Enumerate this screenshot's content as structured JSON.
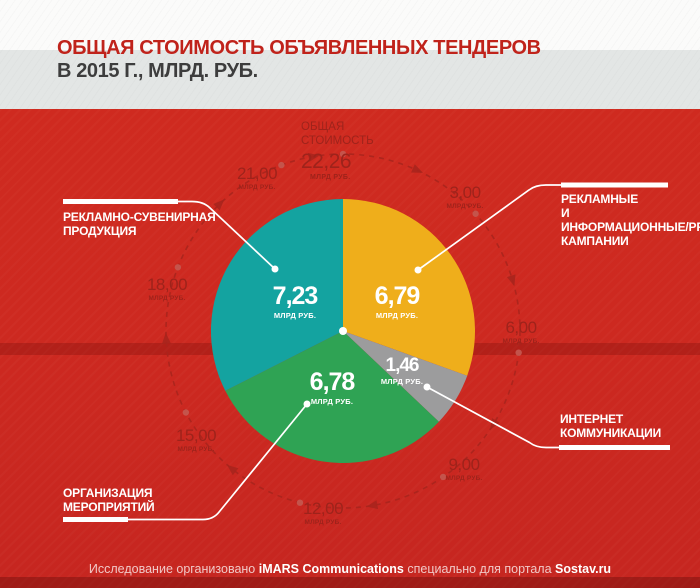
{
  "header": {
    "title_line1": "ОБЩАЯ СТОИМОСТЬ ОБЪЯВЛЕННЫХ ТЕНДЕРОВ",
    "title_line2": "В 2015 Г., МЛРД. РУБ."
  },
  "chart_data": {
    "type": "pie",
    "title": "Общая стоимость объявленных тендеров в 2015 г., млрд. руб.",
    "direction": "clockwise",
    "start_angle_deg": 0,
    "total": {
      "label_line1": "ОБЩАЯ",
      "label_line2": "СТОИМОСТЬ",
      "value": 22.26,
      "value_text": "22,26",
      "unit": "МЛРД РУБ."
    },
    "slices": [
      {
        "name": "Рекламные и информационные/PR кампании",
        "label_lines": [
          "РЕКЛАМНЫЕ",
          "И ИНФОРМАЦИОННЫЕ/PR",
          "КАМПАНИИ"
        ],
        "value": 6.79,
        "value_text": "6,79",
        "unit": "МЛРД РУБ.",
        "color": "#efae1b"
      },
      {
        "name": "Интернет коммуникации",
        "label_lines": [
          "ИНТЕРНЕТ",
          "КОММУНИКАЦИИ"
        ],
        "value": 1.46,
        "value_text": "1,46",
        "unit": "МЛРД РУБ.",
        "color": "#9c9c9d"
      },
      {
        "name": "Организация мероприятий",
        "label_lines": [
          "ОРГАНИЗАЦИЯ",
          "МЕРОПРИЯТИЙ"
        ],
        "value": 6.78,
        "value_text": "6,78",
        "unit": "МЛРД РУБ.",
        "color": "#2fa354"
      },
      {
        "name": "Рекламно-сувенирная продукция",
        "label_lines": [
          "РЕКЛАМНО-СУВЕНИРНАЯ",
          "ПРОДУКЦИЯ"
        ],
        "value": 7.23,
        "value_text": "7,23",
        "unit": "МЛРД РУБ.",
        "color": "#14a3a0"
      }
    ],
    "clock_ticks": [
      {
        "value": 3,
        "text": "3,00",
        "unit": "МЛРД РУБ."
      },
      {
        "value": 6,
        "text": "6,00",
        "unit": "МЛРД РУБ."
      },
      {
        "value": 9,
        "text": "9,00",
        "unit": "МЛРД РУБ."
      },
      {
        "value": 12,
        "text": "12,00",
        "unit": "МЛРД РУБ."
      },
      {
        "value": 15,
        "text": "15,00",
        "unit": "МЛРД РУБ."
      },
      {
        "value": 18,
        "text": "18,00",
        "unit": "МЛРД РУБ."
      },
      {
        "value": 21,
        "text": "21,00",
        "unit": "МЛРД РУБ."
      }
    ]
  },
  "footer": {
    "prefix": "Исследование организовано ",
    "organizer": "iMARS Communications",
    "middle": " специально для портала ",
    "portal": "Sostav.ru"
  },
  "colors": {
    "background_red": "#cd2920",
    "band_dark_red": "#b41f18",
    "title_red": "#c0231b",
    "title_dark": "#3d3d3d",
    "ring_red": "#a8251d",
    "tick_dot_red": "#c4564e",
    "white": "#ffffff"
  }
}
